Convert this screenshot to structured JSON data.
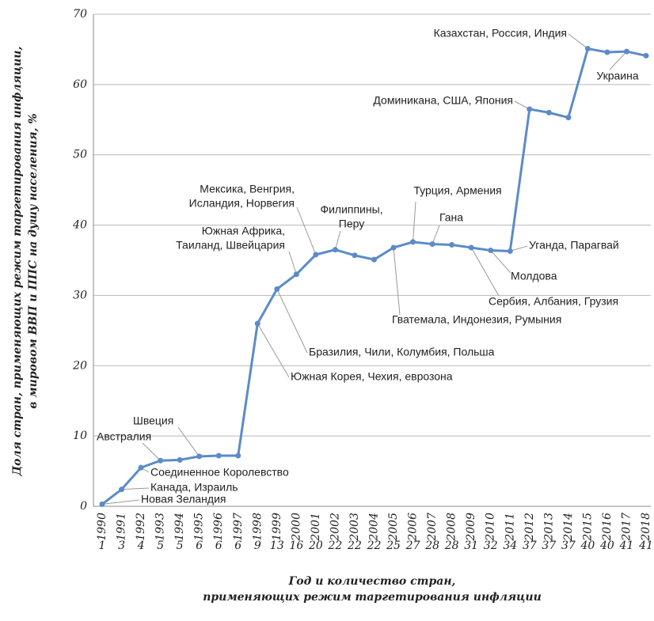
{
  "chart_data": {
    "type": "line",
    "categories": [
      1990,
      1991,
      1992,
      1993,
      1994,
      1995,
      1996,
      1997,
      1998,
      1999,
      2000,
      2001,
      2002,
      2003,
      2004,
      2005,
      2006,
      2007,
      2008,
      2009,
      2010,
      2011,
      2012,
      2013,
      2014,
      2015,
      2016,
      2017,
      2018
    ],
    "counts": [
      1,
      3,
      4,
      5,
      5,
      6,
      6,
      6,
      9,
      13,
      16,
      20,
      22,
      22,
      22,
      25,
      27,
      28,
      28,
      31,
      32,
      34,
      37,
      37,
      37,
      40,
      40,
      41,
      41
    ],
    "series": [
      {
        "color": "#5b8bc9",
        "values": [
          0.3,
          2.4,
          5.5,
          6.5,
          6.6,
          7.1,
          7.2,
          7.2,
          26,
          30.9,
          33,
          35.8,
          36.5,
          35.7,
          35.1,
          36.8,
          37.6,
          37.3,
          37.2,
          36.8,
          36.4,
          36.3,
          56.5,
          56,
          55.3,
          65.1,
          64.6,
          64.7,
          64.1
        ]
      }
    ],
    "ylim": [
      0,
      70
    ],
    "yticks": [
      0,
      10,
      20,
      30,
      40,
      50,
      60,
      70
    ],
    "grid": true,
    "y_label": [
      "Доля стран, применяющих режим таргетирования инфляции,",
      "в мировом ВВП и ППС на душу населения, %"
    ],
    "x_label": [
      "Год и количество стран,",
      "применяющих режим таргетирования инфляции"
    ],
    "annotations": [
      {
        "lines": [
          "Новая Зеландия"
        ],
        "index": 0
      },
      {
        "lines": [
          "Канада, Израиль"
        ],
        "index": 1
      },
      {
        "lines": [
          "Соединенное Королевство"
        ],
        "index": 2
      },
      {
        "lines": [
          "Австралия"
        ],
        "index": 3
      },
      {
        "lines": [
          "Швеция"
        ],
        "index": 5
      },
      {
        "lines": [
          "Южная Корея, Чехия, еврозона"
        ],
        "index": 8
      },
      {
        "lines": [
          "Бразилия, Чили, Колумбия, Польша"
        ],
        "index": 9
      },
      {
        "lines": [
          "Южная Африка,",
          "Таиланд, Швейцария"
        ],
        "index": 10
      },
      {
        "lines": [
          "Мексика, Венгрия,",
          "Исландия, Норвегия"
        ],
        "index": 11
      },
      {
        "lines": [
          "Филиппины,",
          "Перу"
        ],
        "index": 12
      },
      {
        "lines": [
          "Гватемала, Индонезия, Румыния"
        ],
        "index": 15
      },
      {
        "lines": [
          "Турция, Армения"
        ],
        "index": 16
      },
      {
        "lines": [
          "Гана"
        ],
        "index": 17
      },
      {
        "lines": [
          "Сербия, Албания, Грузия"
        ],
        "index": 19
      },
      {
        "lines": [
          "Молдова"
        ],
        "index": 20
      },
      {
        "lines": [
          "Уганда, Парагвай"
        ],
        "index": 21
      },
      {
        "lines": [
          "Доминикана, США, Япония"
        ],
        "index": 22
      },
      {
        "lines": [
          "Казахстан, Россия, Индия"
        ],
        "index": 25
      },
      {
        "lines": [
          "Украина"
        ],
        "index": 27
      }
    ]
  }
}
